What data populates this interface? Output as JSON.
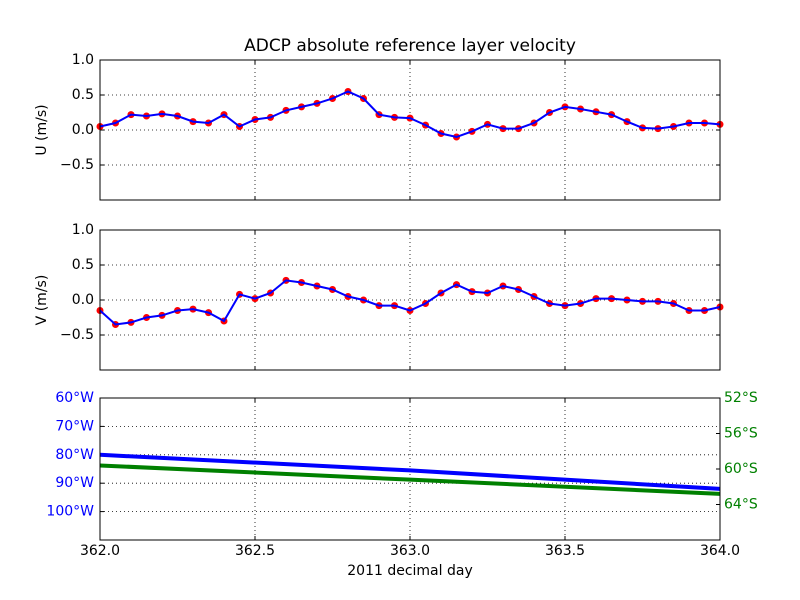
{
  "chart_data": [
    {
      "type": "line",
      "title": "ADCP absolute reference layer velocity",
      "ylabel": "U (m/s)",
      "x": [
        362.0,
        362.05,
        362.1,
        362.15,
        362.2,
        362.25,
        362.3,
        362.35,
        362.4,
        362.45,
        362.5,
        362.55,
        362.6,
        362.65,
        362.7,
        362.75,
        362.8,
        362.85,
        362.9,
        362.95,
        363.0,
        363.05,
        363.1,
        363.15,
        363.2,
        363.25,
        363.3,
        363.35,
        363.4,
        363.45,
        363.5,
        363.55,
        363.6,
        363.65,
        363.7,
        363.75,
        363.8,
        363.85,
        363.9,
        363.95,
        364.0
      ],
      "series": [
        {
          "color": "#0000ff",
          "marker_color": "#ff0000",
          "values": [
            0.05,
            0.1,
            0.22,
            0.2,
            0.23,
            0.2,
            0.12,
            0.1,
            0.22,
            0.05,
            0.15,
            0.18,
            0.28,
            0.33,
            0.38,
            0.45,
            0.55,
            0.45,
            0.22,
            0.18,
            0.17,
            0.07,
            -0.05,
            -0.1,
            -0.02,
            0.08,
            0.02,
            0.02,
            0.1,
            0.25,
            0.33,
            0.3,
            0.26,
            0.22,
            0.12,
            0.03,
            0.02,
            0.05,
            0.1,
            0.1,
            0.08
          ]
        }
      ],
      "xlim": [
        362,
        364
      ],
      "xticks": [
        362,
        362.5,
        363,
        363.5,
        364
      ],
      "show_xtick_labels": false,
      "ylim": [
        -1,
        1
      ],
      "yticks": [
        {
          "value": -0.5,
          "label": "−0.5"
        },
        {
          "value": 0,
          "label": "0.0"
        },
        0.5,
        {
          "value": 1,
          "label": "1.0"
        }
      ],
      "grid": true
    },
    {
      "type": "line",
      "ylabel": "V (m/s)",
      "x": [
        362.0,
        362.05,
        362.1,
        362.15,
        362.2,
        362.25,
        362.3,
        362.35,
        362.4,
        362.45,
        362.5,
        362.55,
        362.6,
        362.65,
        362.7,
        362.75,
        362.8,
        362.85,
        362.9,
        362.95,
        363.0,
        363.05,
        363.1,
        363.15,
        363.2,
        363.25,
        363.3,
        363.35,
        363.4,
        363.45,
        363.5,
        363.55,
        363.6,
        363.65,
        363.7,
        363.75,
        363.8,
        363.85,
        363.9,
        363.95,
        364.0
      ],
      "series": [
        {
          "color": "#0000ff",
          "marker_color": "#ff0000",
          "values": [
            -0.15,
            -0.35,
            -0.32,
            -0.25,
            -0.22,
            -0.15,
            -0.13,
            -0.18,
            -0.3,
            0.08,
            0.02,
            0.1,
            0.28,
            0.25,
            0.2,
            0.15,
            0.05,
            0.0,
            -0.08,
            -0.08,
            -0.15,
            -0.05,
            0.1,
            0.22,
            0.12,
            0.1,
            0.2,
            0.15,
            0.05,
            -0.05,
            -0.08,
            -0.05,
            0.02,
            0.02,
            0.0,
            -0.02,
            -0.02,
            -0.05,
            -0.15,
            -0.15,
            -0.1
          ]
        }
      ],
      "xlim": [
        362,
        364
      ],
      "xticks": [
        362,
        362.5,
        363,
        363.5,
        364
      ],
      "show_xtick_labels": false,
      "ylim": [
        -1,
        1
      ],
      "yticks": [
        {
          "value": -0.5,
          "label": "−0.5"
        },
        {
          "value": 0,
          "label": "0.0"
        },
        0.5,
        {
          "value": 1,
          "label": "1.0"
        }
      ],
      "grid": true
    },
    {
      "type": "line",
      "xlabel": "2011 decimal day",
      "x": [
        362,
        363,
        364
      ],
      "series": [
        {
          "color": "#0000ff",
          "values": [
            -80,
            -85.5,
            -92
          ]
        },
        {
          "color": "#008000",
          "axis": "y2",
          "values": [
            -59.6,
            -61.2,
            -62.8
          ]
        }
      ],
      "xlim": [
        362,
        364
      ],
      "xticks": [
        {
          "value": 362,
          "label": "362.0"
        },
        362.5,
        {
          "value": 363,
          "label": "363.0"
        },
        363.5,
        {
          "value": 364,
          "label": "364.0"
        }
      ],
      "show_xtick_labels": true,
      "ylim": [
        -110,
        -60
      ],
      "yticks": [
        {
          "value": -100,
          "label": "100°W"
        },
        {
          "value": -90,
          "label": "90°W"
        },
        {
          "value": -80,
          "label": "80°W"
        },
        {
          "value": -70,
          "label": "70°W"
        },
        {
          "value": -60,
          "label": "60°W"
        }
      ],
      "ytick_color": "#0000ff",
      "y2lim": [
        -68,
        -52
      ],
      "y2ticks": [
        {
          "value": -64,
          "label": "64°S"
        },
        {
          "value": -60,
          "label": "60°S"
        },
        {
          "value": -56,
          "label": "56°S"
        },
        {
          "value": -52,
          "label": "52°S"
        }
      ],
      "y2tick_color": "#008000",
      "grid": true
    }
  ]
}
